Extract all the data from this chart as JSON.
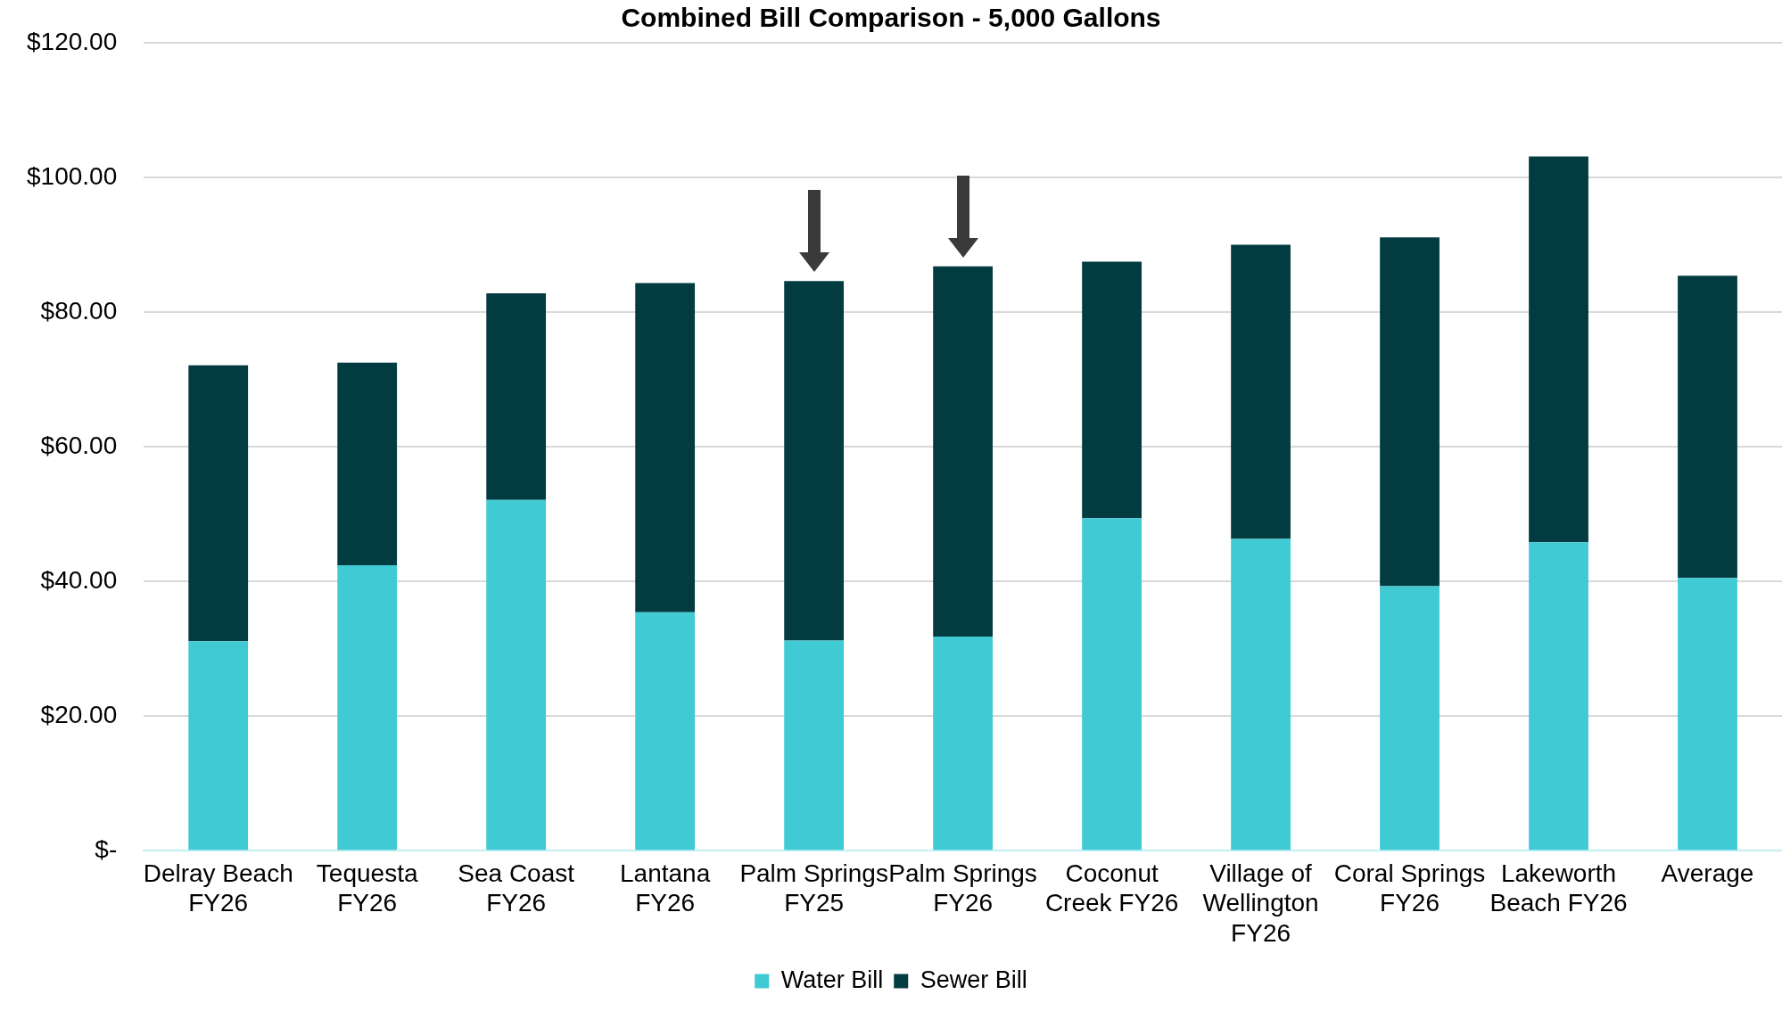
{
  "chart_data": {
    "type": "bar",
    "title": "Combined Bill Comparison - 5,000 Gallons",
    "stacked": true,
    "categories": [
      "Delray Beach FY26",
      "Tequesta FY26",
      "Sea Coast FY26",
      "Lantana FY26",
      "Palm Springs FY25",
      "Palm Springs FY26",
      "Coconut Creek FY26",
      "Village of Wellington FY26",
      "Coral Springs FY26",
      "Lakeworth Beach FY26",
      "Average"
    ],
    "series": [
      {
        "name": "Water Bill",
        "color": "#3fcad4",
        "values": [
          31.1,
          42.4,
          52.1,
          35.4,
          31.2,
          31.8,
          49.4,
          46.3,
          39.3,
          45.8,
          40.5
        ]
      },
      {
        "name": "Sewer Bill",
        "color": "#033c40",
        "values": [
          41.0,
          30.1,
          30.7,
          48.9,
          53.4,
          55.0,
          38.1,
          43.7,
          51.8,
          57.3,
          44.9
        ]
      }
    ],
    "ylim": [
      0,
      120
    ],
    "yticks": [
      {
        "value": 0,
        "label": "$-"
      },
      {
        "value": 20,
        "label": "$20.00"
      },
      {
        "value": 40,
        "label": "$40.00"
      },
      {
        "value": 60,
        "label": "$60.00"
      },
      {
        "value": 80,
        "label": "$80.00"
      },
      {
        "value": 100,
        "label": "$100.00"
      },
      {
        "value": 120,
        "label": "$120.00"
      }
    ],
    "grid": "y",
    "legend": "bottom"
  }
}
